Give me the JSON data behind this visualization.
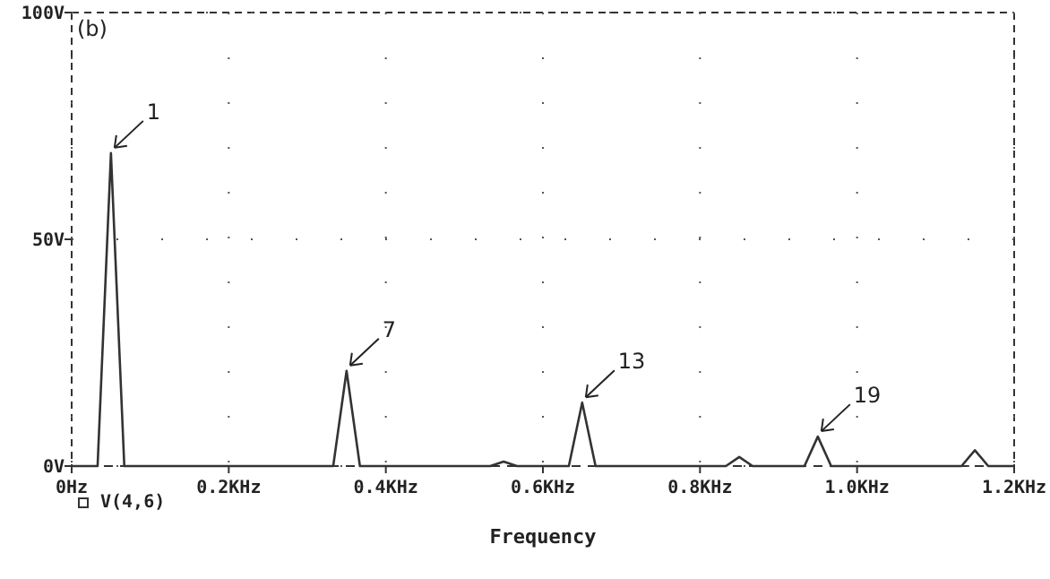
{
  "chart_data": {
    "type": "line",
    "xlabel": "Frequency",
    "x": [
      0,
      0.033,
      0.05,
      0.067,
      0.333,
      0.35,
      0.367,
      0.533,
      0.55,
      0.567,
      0.633,
      0.65,
      0.667,
      0.833,
      0.85,
      0.867,
      0.933,
      0.95,
      0.967,
      1.133,
      1.15,
      1.167,
      1.2
    ],
    "series": [
      {
        "name": "V(4,6)",
        "color": "#333333",
        "values": [
          0,
          0,
          69,
          0,
          0,
          21,
          0,
          0,
          1,
          0,
          0,
          14,
          0,
          0,
          2,
          0,
          0,
          6.5,
          0,
          0,
          3.5,
          0,
          0
        ]
      }
    ],
    "xlim": [
      0,
      1.2
    ],
    "xticks": [
      {
        "value": 0,
        "label": "0Hz"
      },
      {
        "value": 0.2,
        "label": "0.2KHz"
      },
      {
        "value": 0.4,
        "label": "0.4KHz"
      },
      {
        "value": 0.6,
        "label": "0.6KHz"
      },
      {
        "value": 0.8,
        "label": "0.8KHz"
      },
      {
        "value": 1.0,
        "label": "1.0KHz"
      },
      {
        "value": 1.2,
        "label": "1.2KHz"
      }
    ],
    "ylim": [
      0,
      100
    ],
    "yticks": [
      {
        "value": 0,
        "label": "0V"
      },
      {
        "value": 50,
        "label": "50V"
      },
      {
        "value": 100,
        "label": "100V"
      }
    ],
    "grid": true,
    "legend": "bottom left",
    "marker": "none",
    "line_style": "solid",
    "annotations": [
      "(b)",
      {
        "text": "1",
        "x": 0.05,
        "y": 69
      },
      {
        "text": "7",
        "x": 0.35,
        "y": 21
      },
      {
        "text": "13",
        "x": 0.65,
        "y": 14
      },
      {
        "text": "19",
        "x": 0.95,
        "y": 6.5
      }
    ]
  }
}
